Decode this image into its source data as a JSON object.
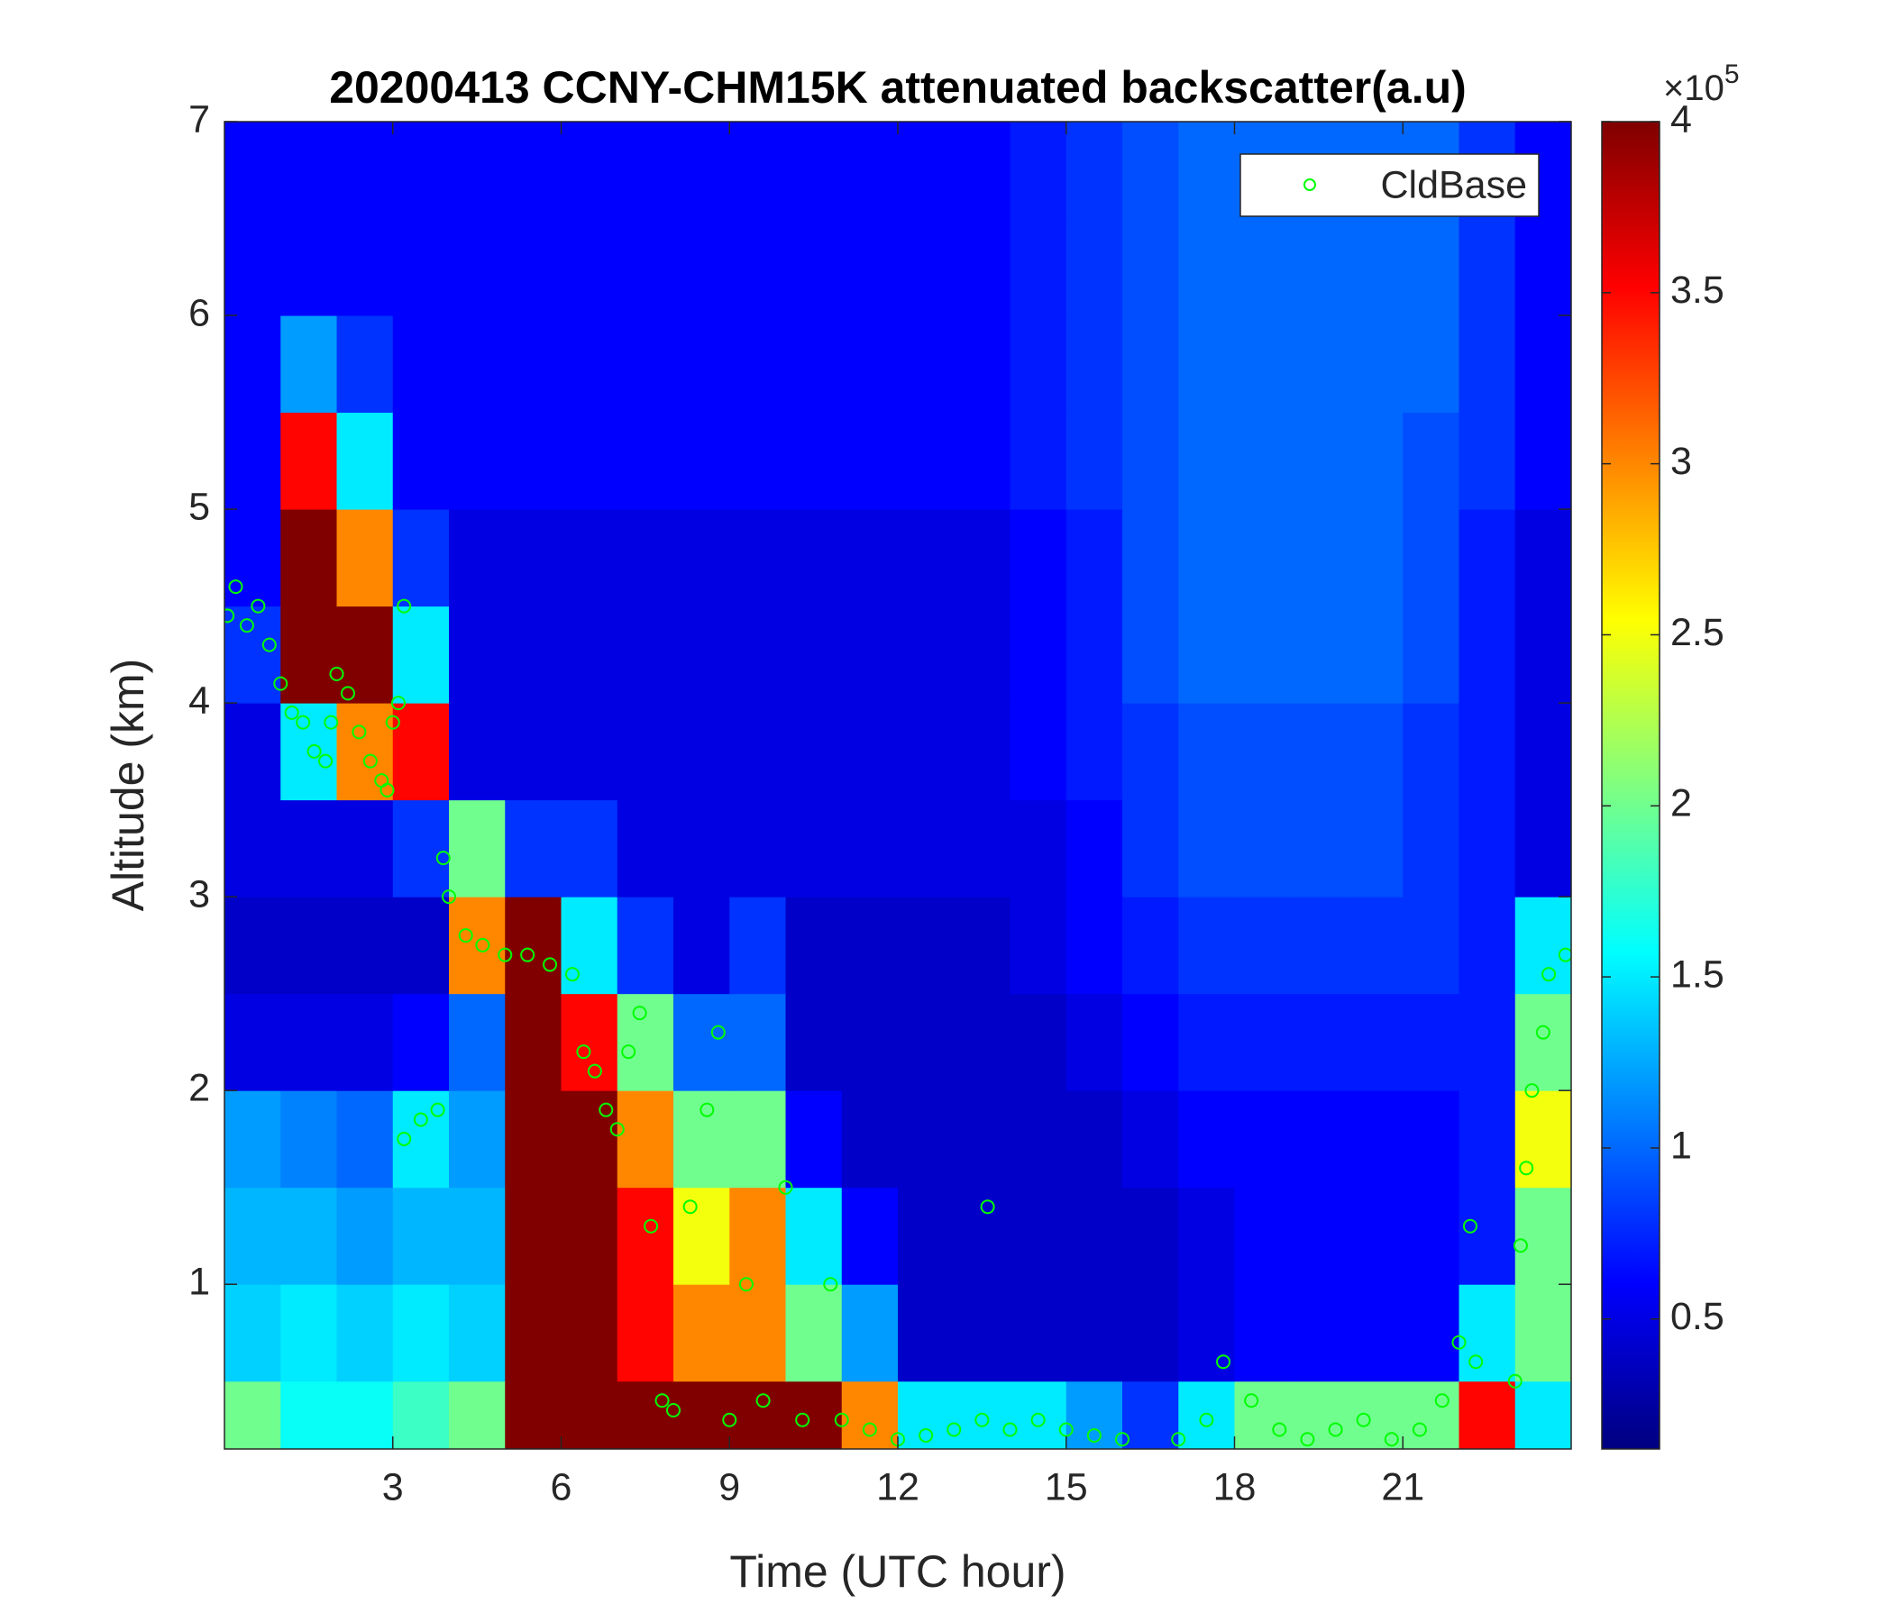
{
  "chart_data": {
    "type": "heatmap",
    "title": "20200413 CCNY-CHM15K attenuated backscatter(a.u)",
    "xlabel": "Time (UTC hour)",
    "ylabel": "Altitude (km)",
    "xlim": [
      0,
      24
    ],
    "ylim": [
      0.15,
      7
    ],
    "xticks": [
      3,
      6,
      9,
      12,
      15,
      18,
      21
    ],
    "yticks": [
      1,
      2,
      3,
      4,
      5,
      6,
      7
    ],
    "x_edges": [
      0,
      1,
      2,
      3,
      4,
      5,
      6,
      7,
      8,
      9,
      10,
      11,
      12,
      13,
      14,
      15,
      16,
      17,
      18,
      19,
      20,
      21,
      22,
      23,
      24
    ],
    "y_edges": [
      0.15,
      0.5,
      1,
      1.5,
      2,
      2.5,
      3,
      3.5,
      4,
      4.5,
      5,
      5.5,
      6,
      6.5,
      7
    ],
    "z": [
      [
        2,
        1.6,
        1.6,
        1.8,
        2,
        4,
        4,
        4,
        4,
        4,
        4,
        3,
        1.5,
        1.5,
        1.5,
        1.2,
        0.8,
        1.5,
        2,
        2,
        2,
        2,
        3.5,
        1.5
      ],
      [
        1.4,
        1.5,
        1.4,
        1.5,
        1.4,
        4,
        4,
        3.5,
        3,
        3,
        2,
        1.2,
        0.4,
        0.4,
        0.4,
        0.4,
        0.4,
        0.5,
        0.6,
        0.6,
        0.6,
        0.6,
        1.5,
        2
      ],
      [
        1.3,
        1.3,
        1.2,
        1.3,
        1.3,
        4,
        4,
        3.5,
        2.5,
        3,
        1.5,
        0.6,
        0.4,
        0.4,
        0.4,
        0.4,
        0.4,
        0.5,
        0.6,
        0.6,
        0.6,
        0.6,
        0.7,
        2
      ],
      [
        1.2,
        1.1,
        1,
        1.5,
        1.2,
        4,
        4,
        3,
        2,
        2,
        0.6,
        0.4,
        0.4,
        0.4,
        0.4,
        0.4,
        0.5,
        0.6,
        0.6,
        0.6,
        0.6,
        0.6,
        0.7,
        2.5
      ],
      [
        0.5,
        0.5,
        0.5,
        0.6,
        1,
        4,
        3.5,
        2,
        1,
        1,
        0.4,
        0.4,
        0.4,
        0.4,
        0.4,
        0.5,
        0.6,
        0.7,
        0.7,
        0.7,
        0.7,
        0.7,
        0.7,
        2
      ],
      [
        0.4,
        0.4,
        0.4,
        0.4,
        3,
        4,
        1.5,
        0.8,
        0.5,
        0.8,
        0.4,
        0.4,
        0.4,
        0.4,
        0.5,
        0.6,
        0.7,
        0.8,
        0.8,
        0.8,
        0.8,
        0.8,
        0.7,
        1.5
      ],
      [
        0.5,
        0.5,
        0.5,
        0.8,
        2,
        0.8,
        0.8,
        0.5,
        0.5,
        0.5,
        0.5,
        0.5,
        0.5,
        0.5,
        0.5,
        0.6,
        0.8,
        0.9,
        0.9,
        0.9,
        0.9,
        0.8,
        0.7,
        0.5
      ],
      [
        0.5,
        1.5,
        3,
        3.5,
        0.5,
        0.5,
        0.5,
        0.5,
        0.5,
        0.5,
        0.5,
        0.5,
        0.5,
        0.5,
        0.6,
        0.7,
        0.8,
        0.9,
        0.9,
        0.9,
        0.9,
        0.8,
        0.7,
        0.5
      ],
      [
        0.8,
        4,
        4,
        1.5,
        0.5,
        0.5,
        0.5,
        0.5,
        0.5,
        0.5,
        0.5,
        0.5,
        0.5,
        0.5,
        0.6,
        0.7,
        0.9,
        1,
        1,
        1,
        1,
        0.9,
        0.7,
        0.5
      ],
      [
        0.6,
        4,
        3,
        0.8,
        0.5,
        0.5,
        0.5,
        0.5,
        0.5,
        0.5,
        0.5,
        0.5,
        0.5,
        0.5,
        0.6,
        0.7,
        0.9,
        1,
        1,
        1,
        1,
        0.9,
        0.7,
        0.5
      ],
      [
        0.6,
        3.5,
        1.5,
        0.6,
        0.6,
        0.6,
        0.6,
        0.6,
        0.6,
        0.6,
        0.6,
        0.6,
        0.6,
        0.6,
        0.7,
        0.8,
        0.9,
        1,
        1,
        1,
        1,
        0.9,
        0.8,
        0.6
      ],
      [
        0.6,
        1.2,
        0.8,
        0.6,
        0.6,
        0.6,
        0.6,
        0.6,
        0.6,
        0.6,
        0.6,
        0.6,
        0.6,
        0.6,
        0.7,
        0.8,
        0.9,
        1,
        1,
        1,
        1,
        1,
        0.8,
        0.6
      ],
      [
        0.6,
        0.6,
        0.6,
        0.6,
        0.6,
        0.6,
        0.6,
        0.6,
        0.6,
        0.6,
        0.6,
        0.6,
        0.6,
        0.6,
        0.7,
        0.8,
        0.9,
        1,
        1,
        1,
        1,
        1,
        0.8,
        0.6
      ],
      [
        0.6,
        0.6,
        0.6,
        0.6,
        0.6,
        0.6,
        0.6,
        0.6,
        0.6,
        0.6,
        0.6,
        0.6,
        0.6,
        0.6,
        0.7,
        0.8,
        0.9,
        1,
        1,
        1,
        1,
        1,
        0.8,
        0.6
      ]
    ],
    "colormap": "jet",
    "clim": [
      0.12,
      4
    ],
    "cticks": [
      0.5,
      1,
      1.5,
      2,
      2.5,
      3,
      3.5,
      4
    ],
    "colorbar_multiplier": "×10",
    "colorbar_exponent": "5",
    "legend": "upper right",
    "series": [
      {
        "name": "CldBase",
        "type": "scatter",
        "color": "#00ff00",
        "x": [
          0.05,
          0.2,
          0.4,
          0.6,
          0.8,
          1,
          1.2,
          1.4,
          1.6,
          1.8,
          1.9,
          2,
          2.2,
          2.4,
          2.6,
          2.8,
          2.9,
          3,
          3.1,
          3.2,
          3.2,
          3.5,
          3.8,
          3.9,
          4,
          4.3,
          4.6,
          5,
          5.4,
          5.8,
          6.2,
          6.4,
          6.6,
          6.8,
          7,
          7.2,
          7.4,
          7.6,
          7.8,
          8,
          8.3,
          8.6,
          8.8,
          9,
          9.3,
          9.6,
          10,
          10.3,
          10.8,
          11,
          11.5,
          12,
          12.5,
          13,
          13.5,
          13.6,
          14,
          14.5,
          15,
          15.5,
          16,
          17,
          17.5,
          17.8,
          18.3,
          18.8,
          19.3,
          19.8,
          20.3,
          20.8,
          21.3,
          21.7,
          22,
          22.2,
          22.3,
          23,
          23.1,
          23.2,
          23.3,
          23.5,
          23.6,
          23.9
        ],
        "y": [
          4.45,
          4.6,
          4.4,
          4.5,
          4.3,
          4.1,
          3.95,
          3.9,
          3.75,
          3.7,
          3.9,
          4.15,
          4.05,
          3.85,
          3.7,
          3.6,
          3.55,
          3.9,
          4,
          4.5,
          1.75,
          1.85,
          1.9,
          3.2,
          3,
          2.8,
          2.75,
          2.7,
          2.7,
          2.65,
          2.6,
          2.2,
          2.1,
          1.9,
          1.8,
          2.2,
          2.4,
          1.3,
          0.4,
          0.35,
          1.4,
          1.9,
          2.3,
          0.3,
          1,
          0.4,
          1.5,
          0.3,
          1,
          0.3,
          0.25,
          0.2,
          0.22,
          0.25,
          0.3,
          1.4,
          0.25,
          0.3,
          0.25,
          0.22,
          0.2,
          0.2,
          0.3,
          0.6,
          0.4,
          0.25,
          0.2,
          0.25,
          0.3,
          0.2,
          0.25,
          0.4,
          0.7,
          1.3,
          0.6,
          0.5,
          1.2,
          1.6,
          2,
          2.3,
          2.6,
          2.7
        ]
      }
    ]
  }
}
